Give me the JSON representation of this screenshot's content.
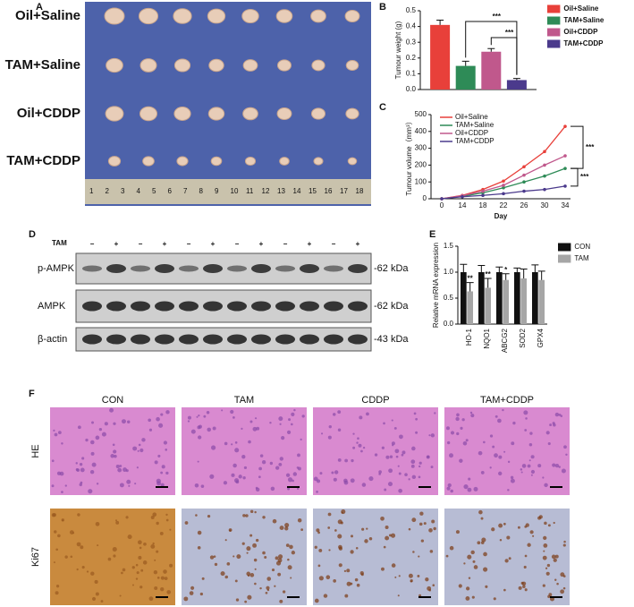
{
  "panel_labels": [
    "A",
    "B",
    "C",
    "D",
    "E",
    "F"
  ],
  "panel_a": {
    "row_labels": [
      "Oil+Saline",
      "TAM+Saline",
      "Oil+CDDP",
      "TAM+CDDP"
    ],
    "ruler_numbers": [
      "1",
      "2",
      "3",
      "4",
      "5",
      "6",
      "7",
      "8",
      "9",
      "10",
      "11",
      "12",
      "13",
      "14",
      "15",
      "16",
      "17",
      "18"
    ]
  },
  "chart_data": [
    {
      "type": "bar",
      "ylabel": "Tumour weight (g)",
      "categories": [
        null
      ],
      "series": [
        {
          "name": "Oil+Saline",
          "color": "#e8403a",
          "values": [
            0.41
          ],
          "errors": [
            0.03
          ]
        },
        {
          "name": "TAM+Saline",
          "color": "#2e8b57",
          "values": [
            0.15
          ],
          "errors": [
            0.03
          ]
        },
        {
          "name": "Oil+CDDP",
          "color": "#c0588c",
          "values": [
            0.24
          ],
          "errors": [
            0.02
          ]
        },
        {
          "name": "TAM+CDDP",
          "color": "#4b3a8c",
          "values": [
            0.06
          ],
          "errors": [
            0.01
          ]
        }
      ],
      "ylim": [
        0,
        0.5
      ],
      "yticks": [
        {
          "value": 0,
          "label": "0.0"
        },
        0.1,
        0.2,
        0.3,
        0.4,
        0.5
      ],
      "annotations": [
        "***",
        "***"
      ]
    },
    {
      "type": "line",
      "ylabel": "Tumour volume（mm³）",
      "xlabel": "Day",
      "categories": [
        "0",
        "14",
        "18",
        "22",
        "26",
        "30",
        "34"
      ],
      "series": [
        {
          "name": "Oil+Saline",
          "color": "#e8403a",
          "values": [
            0,
            20,
            55,
            105,
            190,
            280,
            430
          ]
        },
        {
          "name": "TAM+Saline",
          "color": "#2e8b57",
          "values": [
            0,
            15,
            35,
            65,
            100,
            135,
            180
          ]
        },
        {
          "name": "Oil+CDDP",
          "color": "#c0588c",
          "values": [
            0,
            18,
            45,
            80,
            140,
            200,
            255
          ]
        },
        {
          "name": "TAM+CDDP",
          "color": "#4b3a8c",
          "values": [
            0,
            12,
            20,
            30,
            45,
            55,
            75
          ]
        }
      ],
      "ylim": [
        0,
        500
      ],
      "yticks": [
        0,
        100,
        200,
        300,
        400,
        500
      ],
      "annotations": [
        "***",
        "***"
      ]
    },
    {
      "type": "bar",
      "ylabel": "Relative mRNA expression",
      "categories": [
        "HO-1",
        "NQO1",
        "ABCG2",
        "SOD2",
        "GPX4"
      ],
      "series": [
        {
          "name": "CON",
          "color": "#111111",
          "values": [
            1,
            1,
            1,
            1,
            1
          ],
          "errors": [
            0.15,
            0.13,
            0.1,
            0.08,
            0.14
          ]
        },
        {
          "name": "TAM",
          "color": "#a6a6a6",
          "values": [
            0.63,
            0.7,
            0.85,
            0.88,
            0.85
          ],
          "errors": [
            0.17,
            0.18,
            0.12,
            0.18,
            0.17
          ]
        }
      ],
      "ylim": [
        0,
        1.5
      ],
      "yticks": [
        {
          "value": 0,
          "label": "0.0"
        },
        0.5,
        {
          "value": 1,
          "label": "1.0"
        },
        1.5
      ],
      "significance": [
        "**",
        "**",
        "*",
        null,
        null
      ]
    }
  ],
  "panel_d": {
    "treatment_label": "TAM",
    "lane_signs": [
      "−",
      "+",
      "−",
      "+",
      "−",
      "+",
      "−",
      "+",
      "−",
      "+",
      "−",
      "+"
    ],
    "blots": [
      {
        "name": "p-AMPK",
        "size": "-62 kDa"
      },
      {
        "name": "AMPK",
        "size": "-62 kDa"
      },
      {
        "name": "β-actin",
        "size": "-43 kDa"
      }
    ]
  },
  "panel_f": {
    "columns": [
      "CON",
      "TAM",
      "CDDP",
      "TAM+CDDP"
    ],
    "rows": [
      "HE",
      "Ki67"
    ]
  }
}
